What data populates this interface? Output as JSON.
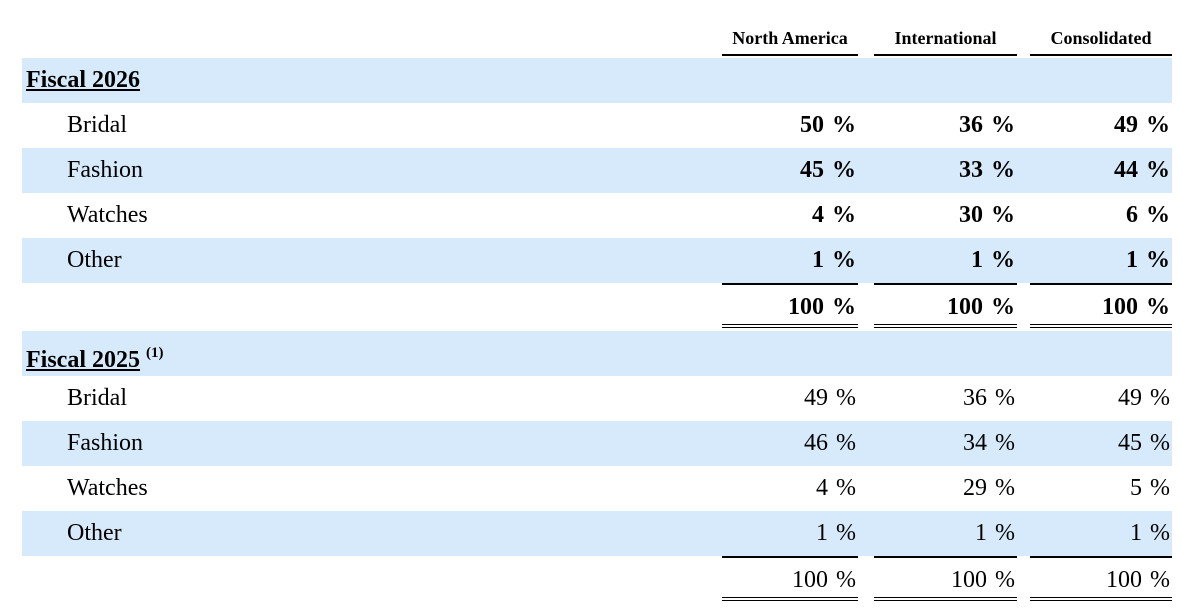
{
  "columns": [
    "North America",
    "International",
    "Consolidated"
  ],
  "sections": [
    {
      "title": "Fiscal 2026",
      "footnote": "",
      "rows": [
        {
          "label": "Bridal",
          "values": [
            "50",
            "36",
            "49"
          ]
        },
        {
          "label": "Fashion",
          "values": [
            "45",
            "33",
            "44"
          ]
        },
        {
          "label": "Watches",
          "values": [
            "4",
            "30",
            "6"
          ]
        },
        {
          "label": "Other",
          "values": [
            "1",
            "1",
            "1"
          ]
        }
      ],
      "total": [
        "100",
        "100",
        "100"
      ]
    },
    {
      "title": "Fiscal 2025",
      "footnote": "(1)",
      "rows": [
        {
          "label": "Bridal",
          "values": [
            "49",
            "36",
            "49"
          ]
        },
        {
          "label": "Fashion",
          "values": [
            "46",
            "34",
            "45"
          ]
        },
        {
          "label": "Watches",
          "values": [
            "4",
            "29",
            "5"
          ]
        },
        {
          "label": "Other",
          "values": [
            "1",
            "1",
            "1"
          ]
        }
      ],
      "total": [
        "100",
        "100",
        "100"
      ]
    }
  ],
  "unit": "%",
  "colors": {
    "shade": "#d6eafb"
  }
}
